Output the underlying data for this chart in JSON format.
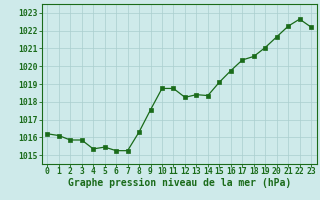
{
  "x": [
    0,
    1,
    2,
    3,
    4,
    5,
    6,
    7,
    8,
    9,
    10,
    11,
    12,
    13,
    14,
    15,
    16,
    17,
    18,
    19,
    20,
    21,
    22,
    23
  ],
  "y": [
    1016.2,
    1016.1,
    1015.85,
    1015.85,
    1015.35,
    1015.45,
    1015.25,
    1015.25,
    1016.3,
    1017.55,
    1018.75,
    1018.75,
    1018.25,
    1018.4,
    1018.35,
    1019.1,
    1019.75,
    1020.35,
    1020.55,
    1021.05,
    1021.65,
    1022.25,
    1022.65,
    1022.2
  ],
  "line_color": "#1a6b1a",
  "marker_color": "#1a6b1a",
  "bg_color": "#ceeaea",
  "grid_color": "#aacece",
  "xlabel": "Graphe pression niveau de la mer (hPa)",
  "xlabel_color": "#1a6b1a",
  "tick_color": "#1a6b1a",
  "spine_color": "#1a6b1a",
  "ylim": [
    1014.5,
    1023.5
  ],
  "yticks": [
    1015,
    1016,
    1017,
    1018,
    1019,
    1020,
    1021,
    1022,
    1023
  ],
  "xticks": [
    0,
    1,
    2,
    3,
    4,
    5,
    6,
    7,
    8,
    9,
    10,
    11,
    12,
    13,
    14,
    15,
    16,
    17,
    18,
    19,
    20,
    21,
    22,
    23
  ],
  "font_size_label": 7.0,
  "font_size_tick": 5.8,
  "marker_size": 2.5,
  "line_width": 0.9
}
